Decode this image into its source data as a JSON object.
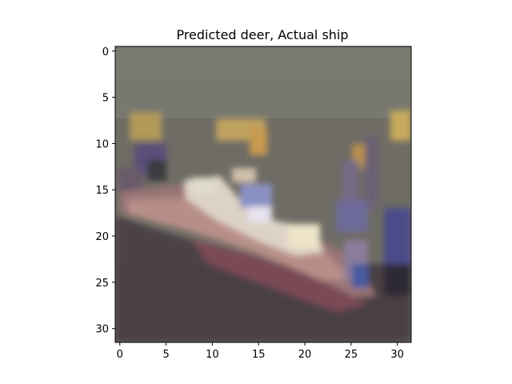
{
  "figure": {
    "title": "Predicted deer, Actual ship"
  },
  "image_view": {
    "grid_size": 32,
    "pixel_extent": [
      -0.5,
      31.5
    ]
  },
  "axes": {
    "x_ticks": [
      0,
      5,
      10,
      15,
      20,
      25,
      30
    ],
    "y_ticks": [
      0,
      5,
      10,
      15,
      20,
      25,
      30
    ]
  },
  "colors": {
    "background": "#ffffff",
    "frame": "#000000",
    "text": "#000000"
  }
}
